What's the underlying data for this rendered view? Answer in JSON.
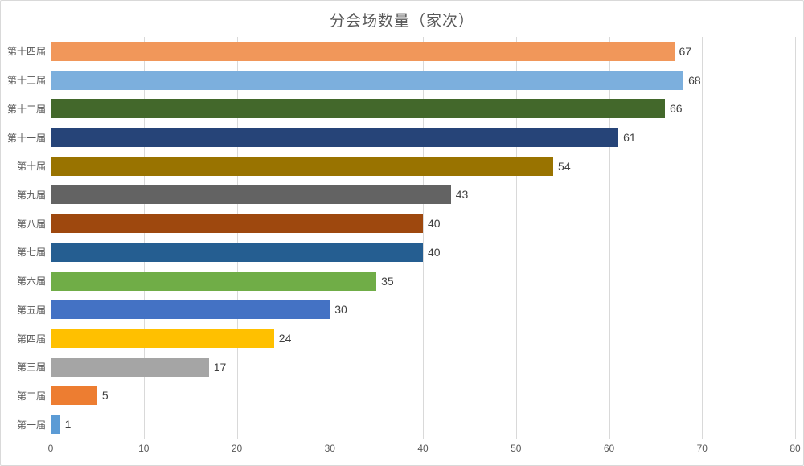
{
  "chart_data": {
    "type": "bar",
    "orientation": "horizontal",
    "title": "分会场数量（家次）",
    "categories": [
      "第十四届",
      "第十三届",
      "第十二届",
      "第十一届",
      "第十届",
      "第九届",
      "第八届",
      "第七届",
      "第六届",
      "第五届",
      "第四届",
      "第三届",
      "第二届",
      "第一届"
    ],
    "values": [
      67,
      68,
      66,
      61,
      54,
      43,
      40,
      40,
      35,
      30,
      24,
      17,
      5,
      1
    ],
    "bar_colors": [
      "#F1975A",
      "#7CAFDD",
      "#43682B",
      "#264478",
      "#997300",
      "#636363",
      "#9E480E",
      "#255E91",
      "#70AD47",
      "#4472C4",
      "#FFC000",
      "#A5A5A5",
      "#ED7D31",
      "#5B9BD5"
    ],
    "xlabel": "",
    "ylabel": "",
    "xlim": [
      0,
      80
    ],
    "x_ticks": [
      0,
      10,
      20,
      30,
      40,
      50,
      60,
      70,
      80
    ],
    "grid": true,
    "legend": "none",
    "value_labels_shown": true
  },
  "colors": {
    "background": "#FFFFFF",
    "frame_border": "#D9D9D9",
    "gridline": "#D9D9D9",
    "title_text": "#595959",
    "axis_text": "#595959",
    "category_text": "#595959",
    "value_text": "#404040"
  }
}
